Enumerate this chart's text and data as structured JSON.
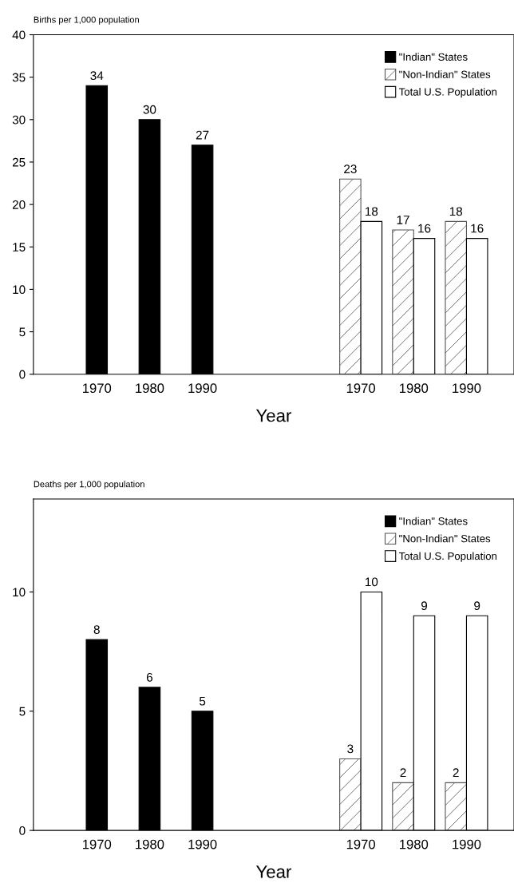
{
  "chart_data": [
    {
      "type": "bar",
      "ylabel": "Births per 1,000 population",
      "xlabel": "Year",
      "categories": [
        "1970",
        "1980",
        "1990",
        null,
        null,
        "1970",
        "1980",
        "1990"
      ],
      "series": [
        {
          "name": "\"Indian\" States",
          "color": "#000000",
          "values": [
            34,
            30,
            27,
            null,
            null,
            null,
            null,
            null
          ]
        },
        {
          "name": "\"Non-Indian\" States",
          "color": "#555555",
          "values": [
            null,
            null,
            null,
            null,
            null,
            23,
            17,
            18
          ]
        },
        {
          "name": "Total U.S. Population",
          "color": "#ffffff",
          "values": [
            null,
            null,
            null,
            null,
            null,
            18,
            16,
            16
          ]
        }
      ],
      "data_labels": true,
      "ylim": [
        0,
        40
      ],
      "yticks": [
        0,
        5,
        10,
        15,
        20,
        25,
        30,
        35,
        40
      ],
      "legend": "top right"
    },
    {
      "type": "bar",
      "ylabel": "Deaths per 1,000 population",
      "xlabel": "Year",
      "categories": [
        "1970",
        "1980",
        "1990",
        null,
        null,
        "1970",
        "1980",
        "1990"
      ],
      "series": [
        {
          "name": "\"Indian\" States",
          "color": "#000000",
          "values": [
            8,
            6,
            5,
            null,
            null,
            null,
            null,
            null
          ]
        },
        {
          "name": "\"Non-Indian\" States",
          "color": "#555555",
          "values": [
            null,
            null,
            null,
            null,
            null,
            3,
            2,
            2
          ]
        },
        {
          "name": "Total U.S. Population",
          "color": "#ffffff",
          "values": [
            null,
            null,
            null,
            null,
            null,
            10,
            9,
            9
          ]
        }
      ],
      "data_labels": true,
      "ylim": [
        0,
        13.9
      ],
      "yticks": [
        0,
        5,
        10
      ],
      "legend": "top right"
    }
  ]
}
